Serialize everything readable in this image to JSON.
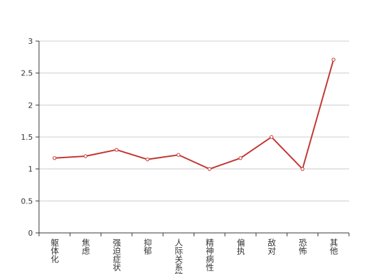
{
  "chart_data": {
    "type": "line",
    "categories": [
      "躯体化",
      "焦虑",
      "强迫症状",
      "抑郁",
      "人际关系敏感",
      "精神病性",
      "偏执",
      "敌对",
      "恐怖",
      "其他"
    ],
    "values": [
      1.17,
      1.2,
      1.3,
      1.15,
      1.22,
      1.0,
      1.17,
      1.5,
      1.0,
      2.71
    ],
    "color": "#c23531",
    "ylim": [
      0,
      3
    ],
    "yticks": [
      0,
      0.5,
      1,
      1.5,
      2,
      2.5,
      3
    ],
    "grid": true
  }
}
